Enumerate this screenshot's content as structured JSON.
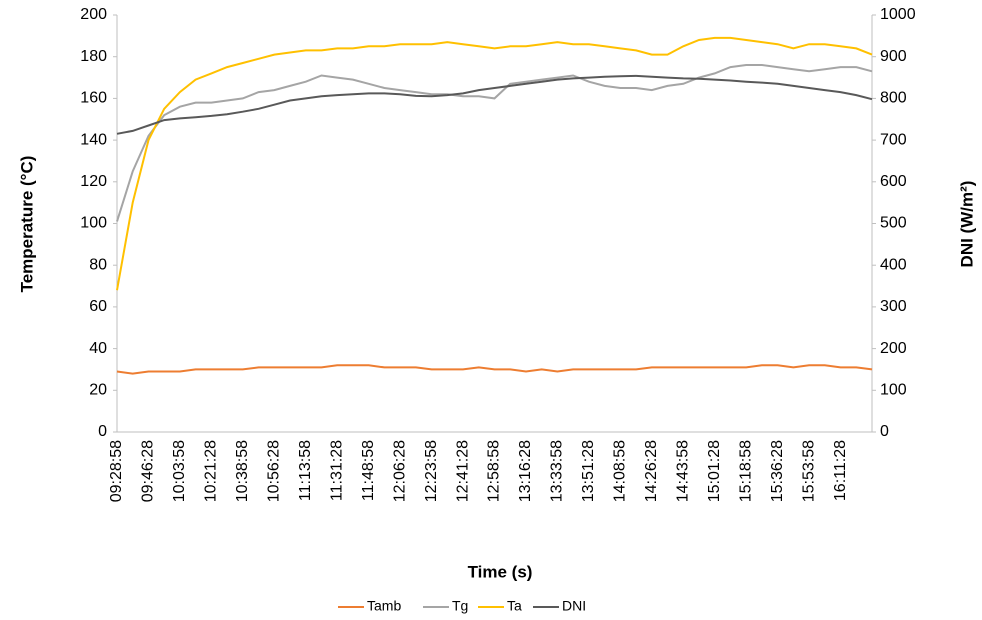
{
  "chart_data": {
    "type": "line",
    "x_label": "Time (s)",
    "y_label": "Temperature (°C)",
    "y2_label": "DNI (W/m²)",
    "categories": [
      "09:28:58",
      null,
      "09:46:28",
      null,
      "10:03:58",
      null,
      "10:21:28",
      null,
      "10:38:58",
      null,
      "10:56:28",
      null,
      "11:13:58",
      null,
      "11:31:28",
      null,
      "11:48:58",
      null,
      "12:06:28",
      null,
      "12:23:58",
      null,
      "12:41:28",
      null,
      "12:58:58",
      null,
      "13:16:28",
      null,
      "13:33:58",
      null,
      "13:51:28",
      null,
      "14:08:58",
      null,
      "14:26:28",
      null,
      "14:43:58",
      null,
      "15:01:28",
      null,
      "15:18:58",
      null,
      "15:36:28",
      null,
      "15:53:58",
      null,
      "16:11:28",
      null,
      null
    ],
    "ylim": [
      0,
      200
    ],
    "yticks": [
      0,
      20,
      40,
      60,
      80,
      100,
      120,
      140,
      160,
      180,
      200
    ],
    "y2lim": [
      0,
      1000
    ],
    "y2ticks": [
      0,
      100,
      200,
      300,
      400,
      500,
      600,
      700,
      800,
      900,
      1000
    ],
    "legend": "bottom",
    "series": [
      {
        "name": "Tamb",
        "color": "#ED7D31",
        "values": [
          29,
          28,
          29,
          29,
          29,
          30,
          30,
          30,
          30,
          31,
          31,
          31,
          31,
          31,
          32,
          32,
          32,
          31,
          31,
          31,
          30,
          30,
          30,
          31,
          30,
          30,
          29,
          30,
          29,
          30,
          30,
          30,
          30,
          30,
          31,
          31,
          31,
          31,
          31,
          31,
          31,
          32,
          32,
          31,
          32,
          32,
          31,
          31,
          30
        ]
      },
      {
        "name": "Tg",
        "color": "#A5A5A5",
        "values": [
          101,
          125,
          142,
          152,
          156,
          158,
          158,
          159,
          160,
          163,
          164,
          166,
          168,
          171,
          170,
          169,
          167,
          165,
          164,
          163,
          162,
          162,
          161,
          161,
          160,
          167,
          168,
          169,
          170,
          171,
          168,
          166,
          165,
          165,
          164,
          166,
          167,
          170,
          172,
          175,
          176,
          176,
          175,
          174,
          173,
          174,
          175,
          175,
          173
        ]
      },
      {
        "name": "Ta",
        "color": "#FFC000",
        "values": [
          68,
          110,
          140,
          155,
          163,
          169,
          172,
          175,
          177,
          179,
          181,
          182,
          183,
          183,
          184,
          184,
          185,
          185,
          186,
          186,
          186,
          187,
          186,
          185,
          184,
          185,
          185,
          186,
          187,
          186,
          186,
          185,
          184,
          183,
          181,
          181,
          185,
          188,
          189,
          189,
          188,
          187,
          186,
          184,
          186,
          186,
          185,
          184,
          181
        ]
      },
      {
        "name": "DNI",
        "color": "#595959",
        "axis": "y2",
        "values": [
          715,
          722,
          735,
          748,
          752,
          755,
          758,
          762,
          768,
          775,
          785,
          795,
          800,
          805,
          808,
          810,
          812,
          812,
          810,
          806,
          805,
          808,
          812,
          820,
          825,
          830,
          835,
          840,
          845,
          848,
          850,
          852,
          853,
          854,
          852,
          850,
          848,
          847,
          845,
          843,
          840,
          838,
          835,
          830,
          825,
          820,
          815,
          808,
          798
        ]
      }
    ]
  }
}
